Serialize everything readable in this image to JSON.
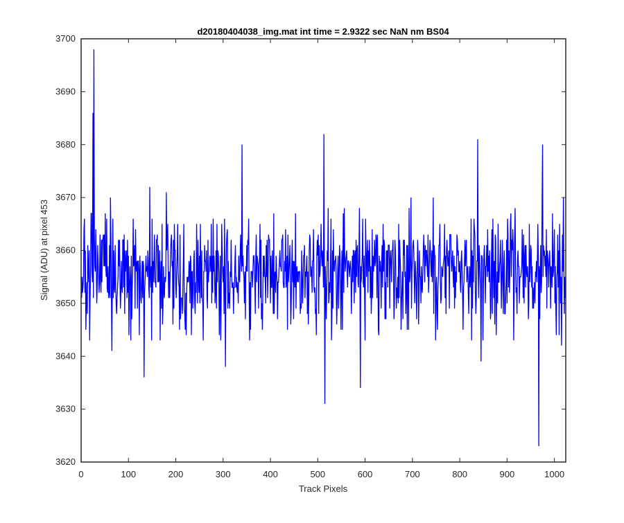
{
  "chart_data": {
    "type": "line",
    "title": "d20180404038_img.mat int time = 2.9322 sec  NaN nm BS04",
    "xlabel": "Track Pixels",
    "ylabel": "Signal (ADU) at pixel 453",
    "xlim": [
      0,
      1024
    ],
    "ylim": [
      3620,
      3700
    ],
    "x_ticks": [
      0,
      100,
      200,
      300,
      400,
      500,
      600,
      700,
      800,
      900,
      1000
    ],
    "y_ticks": [
      3620,
      3630,
      3640,
      3650,
      3660,
      3670,
      3680,
      3690,
      3700
    ],
    "grid": false,
    "line_color": "#0000ff",
    "series": [
      {
        "x_start": 1,
        "x_step": 1,
        "mean": 3656,
        "noise_amplitude": 7,
        "noise_seed": 453,
        "n_points": 1024,
        "notable_points": [
          {
            "x": 10,
            "y": 3645
          },
          {
            "x": 25,
            "y": 3686
          },
          {
            "x": 27,
            "y": 3698
          },
          {
            "x": 65,
            "y": 3641
          },
          {
            "x": 133,
            "y": 3636
          },
          {
            "x": 340,
            "y": 3680
          },
          {
            "x": 305,
            "y": 3638
          },
          {
            "x": 513,
            "y": 3682
          },
          {
            "x": 515,
            "y": 3631
          },
          {
            "x": 590,
            "y": 3634
          },
          {
            "x": 838,
            "y": 3681
          },
          {
            "x": 845,
            "y": 3639
          },
          {
            "x": 975,
            "y": 3680
          },
          {
            "x": 967,
            "y": 3623
          },
          {
            "x": 1015,
            "y": 3642
          }
        ]
      }
    ]
  }
}
